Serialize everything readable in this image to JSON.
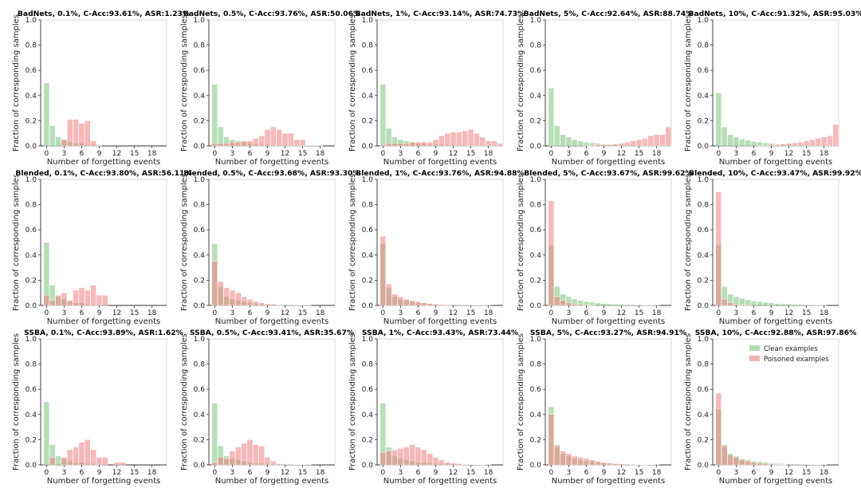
{
  "legend": {
    "clean_label": "Clean examples",
    "poisoned_label": "Poisoned examples",
    "clean_color": "#7ec27e",
    "poisoned_color": "#ef7f7f"
  },
  "axes": {
    "xlabel": "Number of forgetting events",
    "ylabel": "Fraction of corresponding samples",
    "xticks": [
      0,
      3,
      6,
      9,
      12,
      15,
      18
    ],
    "yticks": [
      "0.0",
      "0.2",
      "0.4",
      "0.6",
      "0.8",
      "1.0"
    ],
    "ylim": [
      0,
      1.0
    ],
    "xlim": [
      -1,
      20.5
    ]
  },
  "chart_data": [
    {
      "type": "bar",
      "title": "BadNets, 0.1%, C-Acc:93.61%, ASR:1.23%",
      "x": [
        0,
        1,
        2,
        3,
        4,
        5,
        6,
        7,
        8,
        9,
        10,
        11,
        12,
        13,
        14,
        15,
        16,
        17,
        18,
        19,
        20
      ],
      "series": [
        {
          "name": "Clean examples",
          "values": [
            0.5,
            0.16,
            0.07,
            0.05,
            0.03,
            0.02,
            0.02,
            0.01,
            0.01,
            0.005,
            0,
            0,
            0,
            0,
            0,
            0,
            0,
            0,
            0,
            0,
            0
          ]
        },
        {
          "name": "Poisoned examples",
          "values": [
            0,
            0,
            0,
            0.05,
            0.21,
            0.21,
            0.18,
            0.2,
            0.04,
            0,
            0,
            0,
            0,
            0,
            0,
            0,
            0,
            0,
            0,
            0,
            0
          ]
        }
      ]
    },
    {
      "type": "bar",
      "title": "BadNets, 0.5%, C-Acc:93.76%, ASR:50.06%",
      "x": [
        0,
        1,
        2,
        3,
        4,
        5,
        6,
        7,
        8,
        9,
        10,
        11,
        12,
        13,
        14,
        15,
        16,
        17,
        18,
        19,
        20
      ],
      "series": [
        {
          "name": "Clean examples",
          "values": [
            0.49,
            0.15,
            0.07,
            0.05,
            0.04,
            0.03,
            0.02,
            0.015,
            0.01,
            0.01,
            0.008,
            0.006,
            0.005,
            0.004,
            0.003,
            0.002,
            0.001,
            0.001,
            0.001,
            0,
            0
          ]
        },
        {
          "name": "Poisoned examples",
          "values": [
            0.02,
            0.02,
            0.02,
            0.03,
            0.03,
            0.04,
            0.04,
            0.06,
            0.08,
            0.13,
            0.15,
            0.13,
            0.1,
            0.1,
            0.05,
            0.05,
            0,
            0,
            0,
            0,
            0
          ]
        }
      ]
    },
    {
      "type": "bar",
      "title": "BadNets, 1%, C-Acc:93.14%, ASR:74.73%",
      "x": [
        0,
        1,
        2,
        3,
        4,
        5,
        6,
        7,
        8,
        9,
        10,
        11,
        12,
        13,
        14,
        15,
        16,
        17,
        18,
        19,
        20
      ],
      "series": [
        {
          "name": "Clean examples",
          "values": [
            0.49,
            0.14,
            0.07,
            0.05,
            0.04,
            0.03,
            0.02,
            0.02,
            0.015,
            0.01,
            0.01,
            0.008,
            0.006,
            0.005,
            0.004,
            0.003,
            0.002,
            0.002,
            0.001,
            0.001,
            0.001
          ]
        },
        {
          "name": "Poisoned examples",
          "values": [
            0.01,
            0.02,
            0.02,
            0.02,
            0.02,
            0.03,
            0.03,
            0.03,
            0.03,
            0.05,
            0.08,
            0.1,
            0.11,
            0.11,
            0.12,
            0.13,
            0.1,
            0.07,
            0.04,
            0.04,
            0.02
          ]
        }
      ]
    },
    {
      "type": "bar",
      "title": "BadNets, 5%, C-Acc:92.64%, ASR:88.74%",
      "x": [
        0,
        1,
        2,
        3,
        4,
        5,
        6,
        7,
        8,
        9,
        10,
        11,
        12,
        13,
        14,
        15,
        16,
        17,
        18,
        19,
        20
      ],
      "series": [
        {
          "name": "Clean examples",
          "values": [
            0.46,
            0.16,
            0.09,
            0.07,
            0.05,
            0.04,
            0.03,
            0.025,
            0.02,
            0.015,
            0.012,
            0.01,
            0.008,
            0.006,
            0.005,
            0.004,
            0.003,
            0.002,
            0.002,
            0.001,
            0.001
          ]
        },
        {
          "name": "Poisoned examples",
          "values": [
            0,
            0,
            0,
            0,
            0,
            0,
            0.005,
            0.005,
            0.01,
            0.01,
            0.01,
            0.015,
            0.02,
            0.03,
            0.04,
            0.05,
            0.06,
            0.08,
            0.09,
            0.09,
            0.15
          ]
        }
      ]
    },
    {
      "type": "bar",
      "title": "BadNets, 10%, C-Acc:91.32%, ASR:95.03%",
      "x": [
        0,
        1,
        2,
        3,
        4,
        5,
        6,
        7,
        8,
        9,
        10,
        11,
        12,
        13,
        14,
        15,
        16,
        17,
        18,
        19,
        20
      ],
      "series": [
        {
          "name": "Clean examples",
          "values": [
            0.42,
            0.15,
            0.09,
            0.07,
            0.055,
            0.045,
            0.035,
            0.03,
            0.025,
            0.02,
            0.015,
            0.012,
            0.01,
            0.008,
            0.006,
            0.005,
            0.004,
            0.003,
            0.002,
            0.002,
            0.001
          ]
        },
        {
          "name": "Poisoned examples",
          "values": [
            0,
            0,
            0,
            0,
            0,
            0,
            0,
            0.005,
            0.005,
            0.01,
            0.01,
            0.015,
            0.02,
            0.025,
            0.03,
            0.04,
            0.05,
            0.06,
            0.07,
            0.08,
            0.17
          ]
        }
      ]
    },
    {
      "type": "bar",
      "title": "Blended, 0.1%, C-Acc:93.80%, ASR:56.11%",
      "x": [
        0,
        1,
        2,
        3,
        4,
        5,
        6,
        7,
        8,
        9,
        10,
        11,
        12,
        13,
        14,
        15,
        16,
        17,
        18,
        19,
        20
      ],
      "series": [
        {
          "name": "Clean examples",
          "values": [
            0.5,
            0.16,
            0.07,
            0.05,
            0.03,
            0.02,
            0.02,
            0.01,
            0.01,
            0.005,
            0,
            0,
            0,
            0,
            0,
            0,
            0,
            0,
            0,
            0,
            0
          ]
        },
        {
          "name": "Poisoned examples",
          "values": [
            0.08,
            0.04,
            0.08,
            0.1,
            0.04,
            0.12,
            0.14,
            0.12,
            0.16,
            0.08,
            0.08,
            0,
            0,
            0,
            0,
            0,
            0,
            0,
            0,
            0,
            0
          ]
        }
      ]
    },
    {
      "type": "bar",
      "title": "Blended, 0.5%, C-Acc:93.68%, ASR:93.30%",
      "x": [
        0,
        1,
        2,
        3,
        4,
        5,
        6,
        7,
        8,
        9,
        10,
        11,
        12,
        13,
        14,
        15,
        16,
        17,
        18,
        19,
        20
      ],
      "series": [
        {
          "name": "Clean examples",
          "values": [
            0.49,
            0.15,
            0.07,
            0.05,
            0.04,
            0.03,
            0.02,
            0.015,
            0.01,
            0.01,
            0.008,
            0.006,
            0.005,
            0.004,
            0.003,
            0.002,
            0.001,
            0,
            0,
            0,
            0
          ]
        },
        {
          "name": "Poisoned examples",
          "values": [
            0.35,
            0.19,
            0.14,
            0.12,
            0.1,
            0.07,
            0.05,
            0.03,
            0.02,
            0.01,
            0.01,
            0.005,
            0,
            0,
            0,
            0,
            0,
            0,
            0,
            0,
            0
          ]
        }
      ]
    },
    {
      "type": "bar",
      "title": "Blended, 1%, C-Acc:93.76%, ASR:94.88%",
      "x": [
        0,
        1,
        2,
        3,
        4,
        5,
        6,
        7,
        8,
        9,
        10,
        11,
        12,
        13,
        14,
        15,
        16,
        17,
        18,
        19,
        20
      ],
      "series": [
        {
          "name": "Clean examples",
          "values": [
            0.49,
            0.14,
            0.07,
            0.05,
            0.04,
            0.03,
            0.02,
            0.02,
            0.015,
            0.01,
            0.01,
            0.008,
            0.006,
            0.005,
            0.004,
            0.003,
            0.002,
            0.002,
            0.001,
            0,
            0
          ]
        },
        {
          "name": "Poisoned examples",
          "values": [
            0.55,
            0.17,
            0.09,
            0.07,
            0.05,
            0.04,
            0.03,
            0.02,
            0.015,
            0.01,
            0.005,
            0.005,
            0,
            0,
            0,
            0,
            0,
            0,
            0,
            0,
            0
          ]
        }
      ]
    },
    {
      "type": "bar",
      "title": "Blended, 5%, C-Acc:93.67%, ASR:99.62%",
      "x": [
        0,
        1,
        2,
        3,
        4,
        5,
        6,
        7,
        8,
        9,
        10,
        11,
        12,
        13,
        14,
        15,
        16,
        17,
        18,
        19,
        20
      ],
      "series": [
        {
          "name": "Clean examples",
          "values": [
            0.48,
            0.15,
            0.09,
            0.07,
            0.05,
            0.04,
            0.03,
            0.025,
            0.02,
            0.015,
            0.012,
            0.01,
            0.008,
            0.006,
            0.005,
            0.004,
            0.003,
            0.002,
            0.001,
            0,
            0
          ]
        },
        {
          "name": "Poisoned examples",
          "values": [
            0.83,
            0.07,
            0.04,
            0.02,
            0.01,
            0.01,
            0.005,
            0.005,
            0,
            0,
            0,
            0,
            0,
            0,
            0,
            0,
            0,
            0,
            0,
            0,
            0
          ]
        }
      ]
    },
    {
      "type": "bar",
      "title": "Blended, 10%, C-Acc:93.47%, ASR:99.92%",
      "x": [
        0,
        1,
        2,
        3,
        4,
        5,
        6,
        7,
        8,
        9,
        10,
        11,
        12,
        13,
        14,
        15,
        16,
        17,
        18,
        19,
        20
      ],
      "series": [
        {
          "name": "Clean examples",
          "values": [
            0.48,
            0.15,
            0.09,
            0.07,
            0.055,
            0.045,
            0.035,
            0.03,
            0.025,
            0.02,
            0.015,
            0.012,
            0.01,
            0.008,
            0.006,
            0.005,
            0.004,
            0.003,
            0.002,
            0,
            0
          ]
        },
        {
          "name": "Poisoned examples",
          "values": [
            0.9,
            0.05,
            0.02,
            0.01,
            0.005,
            0.005,
            0,
            0,
            0,
            0,
            0,
            0,
            0,
            0,
            0,
            0,
            0,
            0,
            0,
            0,
            0
          ]
        }
      ]
    },
    {
      "type": "bar",
      "title": "SSBA, 0.1%, C-Acc:93.89%, ASR:1.62%",
      "x": [
        0,
        1,
        2,
        3,
        4,
        5,
        6,
        7,
        8,
        9,
        10,
        11,
        12,
        13,
        14,
        15,
        16,
        17,
        18,
        19,
        20
      ],
      "series": [
        {
          "name": "Clean examples",
          "values": [
            0.5,
            0.16,
            0.07,
            0.05,
            0.03,
            0.02,
            0.02,
            0.01,
            0.01,
            0.005,
            0,
            0,
            0,
            0,
            0,
            0,
            0,
            0,
            0,
            0,
            0
          ]
        },
        {
          "name": "Poisoned examples",
          "values": [
            0,
            0.06,
            0,
            0.06,
            0.12,
            0.14,
            0.18,
            0.2,
            0.12,
            0.06,
            0.06,
            0,
            0.02,
            0.02,
            0,
            0,
            0,
            0,
            0,
            0,
            0
          ]
        }
      ]
    },
    {
      "type": "bar",
      "title": "SSBA, 0.5%, C-Acc:93.41%, ASR:35.67%",
      "x": [
        0,
        1,
        2,
        3,
        4,
        5,
        6,
        7,
        8,
        9,
        10,
        11,
        12,
        13,
        14,
        15,
        16,
        17,
        18,
        19,
        20
      ],
      "series": [
        {
          "name": "Clean examples",
          "values": [
            0.49,
            0.15,
            0.07,
            0.05,
            0.04,
            0.03,
            0.02,
            0.015,
            0.01,
            0.01,
            0.008,
            0.006,
            0.005,
            0.004,
            0.003,
            0.002,
            0.001,
            0,
            0,
            0,
            0
          ]
        },
        {
          "name": "Poisoned examples",
          "values": [
            0.02,
            0.06,
            0.05,
            0.11,
            0.14,
            0.17,
            0.2,
            0.16,
            0.15,
            0.06,
            0.03,
            0.01,
            0,
            0,
            0,
            0,
            0,
            0,
            0,
            0,
            0
          ]
        }
      ]
    },
    {
      "type": "bar",
      "title": "SSBA, 1%, C-Acc:93.43%, ASR:73.44%",
      "x": [
        0,
        1,
        2,
        3,
        4,
        5,
        6,
        7,
        8,
        9,
        10,
        11,
        12,
        13,
        14,
        15,
        16,
        17,
        18,
        19,
        20
      ],
      "series": [
        {
          "name": "Clean examples",
          "values": [
            0.49,
            0.14,
            0.07,
            0.05,
            0.04,
            0.03,
            0.02,
            0.02,
            0.015,
            0.01,
            0.01,
            0.008,
            0.006,
            0.005,
            0.004,
            0.003,
            0.002,
            0.002,
            0.001,
            0,
            0
          ]
        },
        {
          "name": "Poisoned examples",
          "values": [
            0.1,
            0.11,
            0.12,
            0.13,
            0.14,
            0.16,
            0.14,
            0.12,
            0.09,
            0.06,
            0.04,
            0.02,
            0.015,
            0.01,
            0.005,
            0,
            0,
            0,
            0,
            0,
            0
          ]
        }
      ]
    },
    {
      "type": "bar",
      "title": "SSBA, 5%, C-Acc:93.27%, ASR:94.91%",
      "x": [
        0,
        1,
        2,
        3,
        4,
        5,
        6,
        7,
        8,
        9,
        10,
        11,
        12,
        13,
        14,
        15,
        16,
        17,
        18,
        19,
        20
      ],
      "series": [
        {
          "name": "Clean examples",
          "values": [
            0.46,
            0.16,
            0.09,
            0.07,
            0.05,
            0.04,
            0.03,
            0.025,
            0.02,
            0.015,
            0.012,
            0.01,
            0.008,
            0.006,
            0.005,
            0.004,
            0.003,
            0.002,
            0.001,
            0,
            0
          ]
        },
        {
          "name": "Poisoned examples",
          "values": [
            0.4,
            0.15,
            0.11,
            0.09,
            0.07,
            0.06,
            0.05,
            0.04,
            0.03,
            0.02,
            0.015,
            0.01,
            0.008,
            0.006,
            0.004,
            0.003,
            0.002,
            0,
            0,
            0,
            0
          ]
        }
      ]
    },
    {
      "type": "bar",
      "title": "SSBA, 10%, C-Acc:92.88%, ASR:97.86%",
      "x": [
        0,
        1,
        2,
        3,
        4,
        5,
        6,
        7,
        8,
        9,
        10,
        11,
        12,
        13,
        14,
        15,
        16,
        17,
        18,
        19,
        20
      ],
      "series": [
        {
          "name": "Clean examples",
          "values": [
            0.44,
            0.16,
            0.09,
            0.07,
            0.05,
            0.04,
            0.03,
            0.025,
            0.02,
            0.015,
            0.012,
            0.01,
            0.008,
            0.006,
            0.005,
            0.004,
            0.003,
            0.002,
            0.001,
            0,
            0
          ]
        },
        {
          "name": "Poisoned examples",
          "values": [
            0.57,
            0.15,
            0.08,
            0.06,
            0.04,
            0.03,
            0.02,
            0.015,
            0.01,
            0.008,
            0.005,
            0.003,
            0,
            0,
            0,
            0,
            0,
            0,
            0,
            0,
            0
          ]
        }
      ]
    }
  ]
}
